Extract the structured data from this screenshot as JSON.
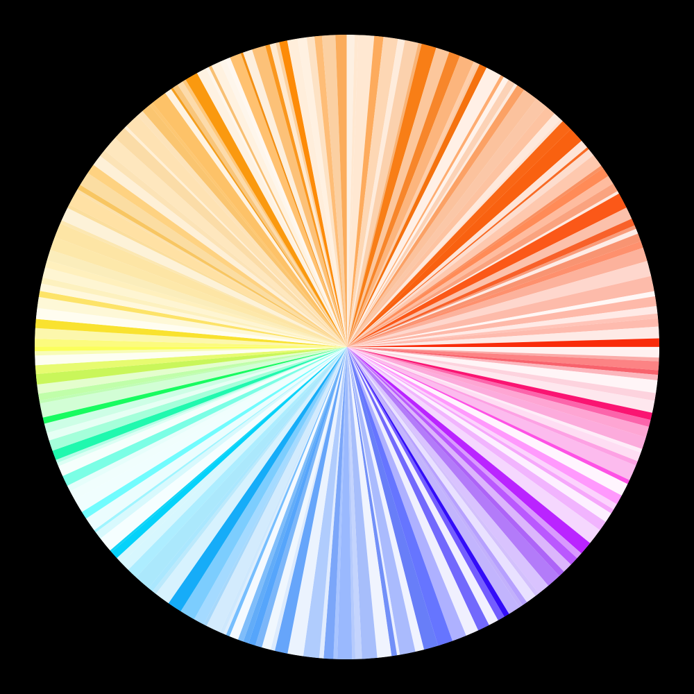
{
  "background": "#000000",
  "wheel": {
    "hue_start_deg": 0,
    "hue_direction": "clockwise-from-right",
    "bands": [
      {
        "name": "red",
        "color": "#ff2a00"
      },
      {
        "name": "orange-red",
        "color": "#ff5a00"
      },
      {
        "name": "orange",
        "color": "#ff8a00"
      },
      {
        "name": "amber",
        "color": "#ffa500"
      },
      {
        "name": "yellow",
        "color": "#ffd400"
      },
      {
        "name": "lime",
        "color": "#d4ff00"
      },
      {
        "name": "green",
        "color": "#00ff66"
      },
      {
        "name": "cyan",
        "color": "#66f2ff"
      },
      {
        "name": "sky-blue",
        "color": "#5ab4ff"
      },
      {
        "name": "blue",
        "color": "#4466ff"
      },
      {
        "name": "violet",
        "color": "#6633ff"
      },
      {
        "name": "purple",
        "color": "#b044ff"
      },
      {
        "name": "magenta",
        "color": "#ff1493"
      },
      {
        "name": "crimson",
        "color": "#ff0033"
      }
    ]
  }
}
